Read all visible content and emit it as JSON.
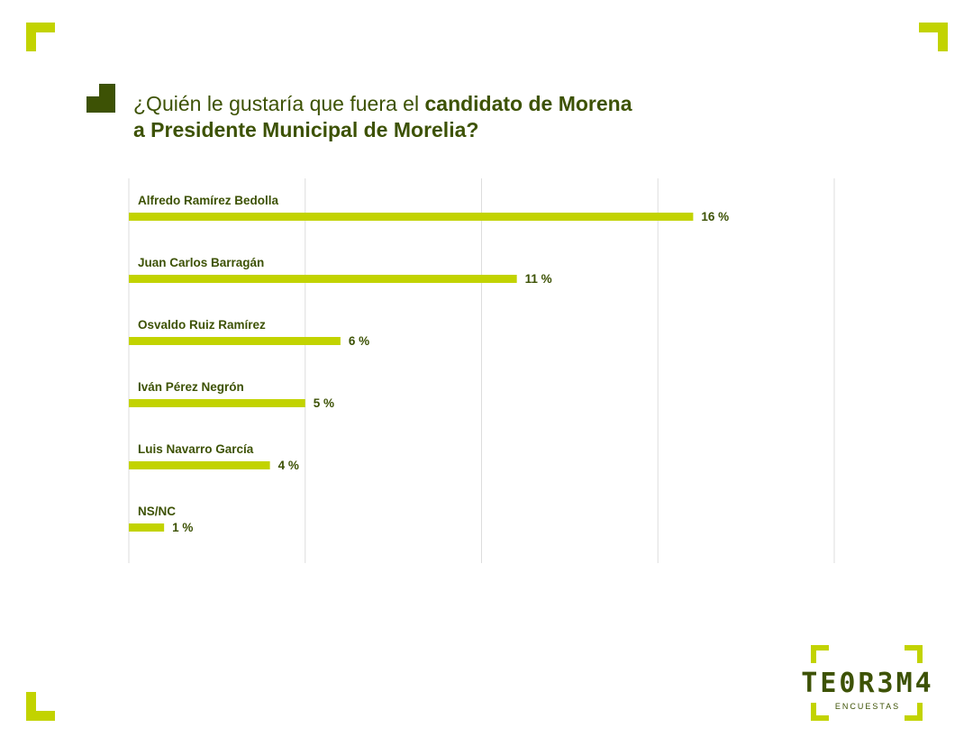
{
  "title": {
    "regular": "¿Quién le gustaría que fuera el ",
    "bold_1": "candidato de Morena",
    "bold_2": "a Presidente Municipal de Morelia?"
  },
  "colors": {
    "bar": "#c2d300",
    "text": "#3d5205",
    "grid": "#dddddd"
  },
  "chart_data": {
    "type": "bar",
    "orientation": "horizontal",
    "categories": [
      "Alfredo Ramírez Bedolla",
      "Juan Carlos Barragán",
      "Osvaldo Ruiz Ramírez",
      "Iván Pérez Negrón",
      "Luis Navarro García",
      "NS/NC"
    ],
    "values": [
      16,
      11,
      6,
      5,
      4,
      1
    ],
    "value_labels": [
      "16 %",
      "11 %",
      "6 %",
      "5 %",
      "4 %",
      "1 %"
    ],
    "unit": "%",
    "xlim": [
      0,
      20
    ],
    "grid": true
  },
  "logo": {
    "name": "TE0R3M4",
    "subtitle": "ENCUESTAS"
  }
}
